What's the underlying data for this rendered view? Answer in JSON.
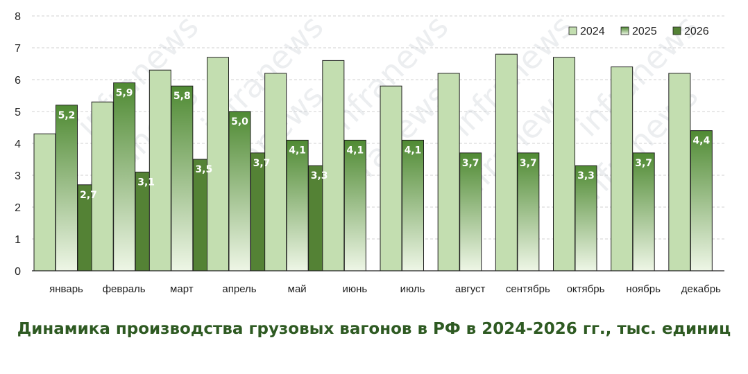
{
  "title": "Динамика производства грузовых вагонов в РФ в 2024-2026 гг., тыс. единиц",
  "watermark": "infranews",
  "colors": {
    "y2024_top": "#c3deb0",
    "y2024_bottom": "#c3deb0",
    "y2025_top": "#4f8a33",
    "y2025_bottom": "#eef6e6",
    "y2026": "#548235",
    "grid": "#d0d0d0",
    "title": "#2e5a22"
  },
  "chart_data": {
    "type": "bar",
    "title": "Динамика производства грузовых вагонов в РФ в 2024-2026 гг., тыс. единиц",
    "xlabel": "",
    "ylabel": "",
    "ylim": [
      0,
      8
    ],
    "yticks": [
      "0",
      "1",
      "2",
      "3",
      "4",
      "5",
      "6",
      "7",
      "8"
    ],
    "grid": true,
    "legend_position": "top-right",
    "categories": [
      "январь",
      "февраль",
      "март",
      "апрель",
      "май",
      "июнь",
      "июль",
      "август",
      "сентябрь",
      "октябрь",
      "ноябрь",
      "декабрь"
    ],
    "series": [
      {
        "name": "2024",
        "values": [
          4.3,
          5.3,
          6.3,
          6.7,
          6.2,
          6.6,
          5.8,
          6.2,
          6.8,
          6.7,
          6.4,
          6.2
        ],
        "labels": []
      },
      {
        "name": "2025",
        "values": [
          5.2,
          5.9,
          5.8,
          5.0,
          4.1,
          4.1,
          4.1,
          3.7,
          3.7,
          3.3,
          3.7,
          4.4
        ],
        "labels": [
          "5,2",
          "5,9",
          "5,8",
          "5,0",
          "4,1",
          "4,1",
          "4,1",
          "3,7",
          "3,7",
          "3,3",
          "3,7",
          "4,4"
        ]
      },
      {
        "name": "2026",
        "values": [
          2.7,
          3.1,
          3.5,
          3.7,
          3.3,
          null,
          null,
          null,
          null,
          null,
          null,
          null
        ],
        "labels": [
          "2,7",
          "3,1",
          "3,5",
          "3,7",
          "3,3"
        ]
      }
    ]
  }
}
